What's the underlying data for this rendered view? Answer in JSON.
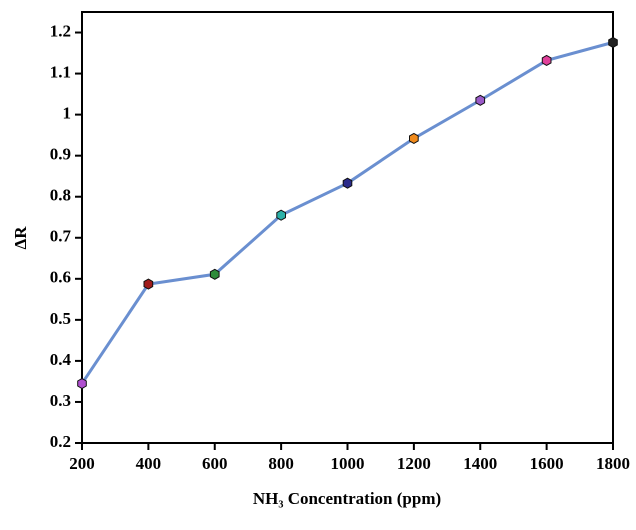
{
  "chart_data": {
    "type": "line",
    "x_label": "NH₃ Concentration (ppm)",
    "y_label": "ΔR",
    "x": [
      200,
      400,
      600,
      800,
      1000,
      1200,
      1400,
      1600,
      1800
    ],
    "series": [
      {
        "color": "#6a8fd0",
        "values": [
          0.345,
          0.587,
          0.611,
          0.755,
          0.833,
          0.942,
          1.035,
          1.132,
          1.176
        ],
        "marker_colors": [
          "#b04fd0",
          "#a01c1c",
          "#2e8b3a",
          "#2ab0a8",
          "#2a2a8a",
          "#f08a1c",
          "#9a5ac8",
          "#e0409a",
          "#222222"
        ]
      }
    ],
    "xlim": [
      200,
      1800
    ],
    "xticks": [
      200,
      400,
      600,
      800,
      1000,
      1200,
      1400,
      1600,
      1800
    ],
    "ylim": [
      0.2,
      1.25
    ],
    "yticks": [
      0.2,
      0.3,
      0.4,
      0.5,
      0.6,
      0.7,
      0.8,
      0.9,
      1.0,
      1.1,
      1.2
    ]
  }
}
